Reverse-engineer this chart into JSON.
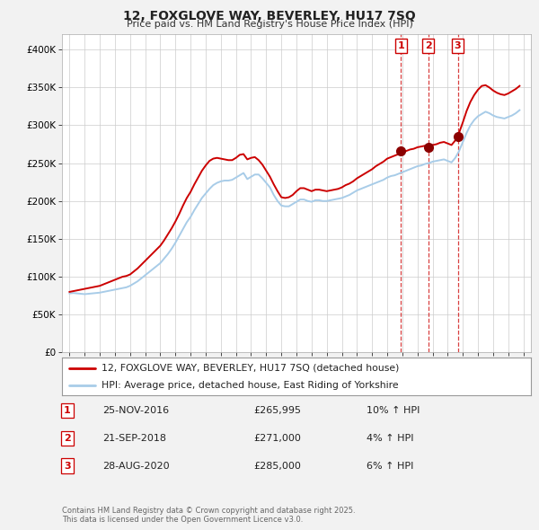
{
  "title": "12, FOXGLOVE WAY, BEVERLEY, HU17 7SQ",
  "subtitle": "Price paid vs. HM Land Registry's House Price Index (HPI)",
  "hpi_color": "#a8cce8",
  "price_color": "#cc0000",
  "background_color": "#f2f2f2",
  "plot_bg_color": "#ffffff",
  "ylim": [
    0,
    420000
  ],
  "yticks": [
    0,
    50000,
    100000,
    150000,
    200000,
    250000,
    300000,
    350000,
    400000
  ],
  "ytick_labels": [
    "£0",
    "£50K",
    "£100K",
    "£150K",
    "£200K",
    "£250K",
    "£300K",
    "£350K",
    "£400K"
  ],
  "legend_label_price": "12, FOXGLOVE WAY, BEVERLEY, HU17 7SQ (detached house)",
  "legend_label_hpi": "HPI: Average price, detached house, East Riding of Yorkshire",
  "transactions": [
    {
      "num": 1,
      "date": "25-NOV-2016",
      "price": 265995,
      "pct": "10%",
      "direction": "↑"
    },
    {
      "num": 2,
      "date": "21-SEP-2018",
      "price": 271000,
      "pct": "4%",
      "direction": "↑"
    },
    {
      "num": 3,
      "date": "28-AUG-2020",
      "price": 285000,
      "pct": "6%",
      "direction": "↑"
    }
  ],
  "footer": "Contains HM Land Registry data © Crown copyright and database right 2025.\nThis data is licensed under the Open Government Licence v3.0.",
  "hpi_data": {
    "years": [
      1995.0,
      1995.25,
      1995.5,
      1995.75,
      1996.0,
      1996.25,
      1996.5,
      1996.75,
      1997.0,
      1997.25,
      1997.5,
      1997.75,
      1998.0,
      1998.25,
      1998.5,
      1998.75,
      1999.0,
      1999.25,
      1999.5,
      1999.75,
      2000.0,
      2000.25,
      2000.5,
      2000.75,
      2001.0,
      2001.25,
      2001.5,
      2001.75,
      2002.0,
      2002.25,
      2002.5,
      2002.75,
      2003.0,
      2003.25,
      2003.5,
      2003.75,
      2004.0,
      2004.25,
      2004.5,
      2004.75,
      2005.0,
      2005.25,
      2005.5,
      2005.75,
      2006.0,
      2006.25,
      2006.5,
      2006.75,
      2007.0,
      2007.25,
      2007.5,
      2007.75,
      2008.0,
      2008.25,
      2008.5,
      2008.75,
      2009.0,
      2009.25,
      2009.5,
      2009.75,
      2010.0,
      2010.25,
      2010.5,
      2010.75,
      2011.0,
      2011.25,
      2011.5,
      2011.75,
      2012.0,
      2012.25,
      2012.5,
      2012.75,
      2013.0,
      2013.25,
      2013.5,
      2013.75,
      2014.0,
      2014.25,
      2014.5,
      2014.75,
      2015.0,
      2015.25,
      2015.5,
      2015.75,
      2016.0,
      2016.25,
      2016.5,
      2016.75,
      2017.0,
      2017.25,
      2017.5,
      2017.75,
      2018.0,
      2018.25,
      2018.5,
      2018.75,
      2019.0,
      2019.25,
      2019.5,
      2019.75,
      2020.0,
      2020.25,
      2020.5,
      2020.75,
      2021.0,
      2021.25,
      2021.5,
      2021.75,
      2022.0,
      2022.25,
      2022.5,
      2022.75,
      2023.0,
      2023.25,
      2023.5,
      2023.75,
      2024.0,
      2024.25,
      2024.5,
      2024.75
    ],
    "values": [
      78000,
      78500,
      78000,
      77500,
      77000,
      77500,
      78000,
      78500,
      79000,
      80000,
      81000,
      82000,
      83000,
      84000,
      85000,
      86000,
      88000,
      91000,
      94000,
      98000,
      102000,
      106000,
      110000,
      114000,
      118000,
      124000,
      130000,
      137000,
      145000,
      154000,
      163000,
      172000,
      179000,
      188000,
      196000,
      204000,
      210000,
      216000,
      221000,
      224000,
      226000,
      227000,
      227000,
      228000,
      231000,
      234000,
      237000,
      229000,
      232000,
      235000,
      235000,
      230000,
      224000,
      218000,
      208000,
      200000,
      194000,
      193000,
      193000,
      196000,
      199000,
      202000,
      202000,
      200000,
      199000,
      201000,
      201000,
      200000,
      200000,
      201000,
      202000,
      203000,
      204000,
      206000,
      208000,
      211000,
      214000,
      216000,
      218000,
      220000,
      222000,
      224000,
      226000,
      228000,
      231000,
      233000,
      234000,
      236000,
      238000,
      240000,
      242000,
      244000,
      246000,
      247000,
      249000,
      250000,
      252000,
      253000,
      254000,
      255000,
      253000,
      251000,
      257000,
      266000,
      278000,
      290000,
      300000,
      307000,
      312000,
      315000,
      318000,
      316000,
      313000,
      311000,
      310000,
      309000,
      311000,
      313000,
      316000,
      320000
    ]
  },
  "price_data": {
    "years": [
      1995.0,
      1995.25,
      1995.5,
      1995.75,
      1996.0,
      1996.25,
      1996.5,
      1996.75,
      1997.0,
      1997.25,
      1997.5,
      1997.75,
      1998.0,
      1998.25,
      1998.5,
      1998.75,
      1999.0,
      1999.25,
      1999.5,
      1999.75,
      2000.0,
      2000.25,
      2000.5,
      2000.75,
      2001.0,
      2001.25,
      2001.5,
      2001.75,
      2002.0,
      2002.25,
      2002.5,
      2002.75,
      2003.0,
      2003.25,
      2003.5,
      2003.75,
      2004.0,
      2004.25,
      2004.5,
      2004.75,
      2005.0,
      2005.25,
      2005.5,
      2005.75,
      2006.0,
      2006.25,
      2006.5,
      2006.75,
      2007.0,
      2007.25,
      2007.5,
      2007.75,
      2008.0,
      2008.25,
      2008.5,
      2008.75,
      2009.0,
      2009.25,
      2009.5,
      2009.75,
      2010.0,
      2010.25,
      2010.5,
      2010.75,
      2011.0,
      2011.25,
      2011.5,
      2011.75,
      2012.0,
      2012.25,
      2012.5,
      2012.75,
      2013.0,
      2013.25,
      2013.5,
      2013.75,
      2014.0,
      2014.25,
      2014.5,
      2014.75,
      2015.0,
      2015.25,
      2015.5,
      2015.75,
      2016.0,
      2016.25,
      2016.5,
      2016.75,
      2017.0,
      2017.25,
      2017.5,
      2017.75,
      2018.0,
      2018.25,
      2018.5,
      2018.75,
      2019.0,
      2019.25,
      2019.5,
      2019.75,
      2020.0,
      2020.25,
      2020.5,
      2020.75,
      2021.0,
      2021.25,
      2021.5,
      2021.75,
      2022.0,
      2022.25,
      2022.5,
      2022.75,
      2023.0,
      2023.25,
      2023.5,
      2023.75,
      2024.0,
      2024.25,
      2024.5,
      2024.75
    ],
    "values": [
      80000,
      81000,
      82000,
      83000,
      84000,
      85000,
      86000,
      87000,
      88000,
      90000,
      92000,
      94000,
      96000,
      98000,
      100000,
      101000,
      103000,
      107000,
      111000,
      116000,
      121000,
      126000,
      131000,
      136000,
      141000,
      148000,
      156000,
      164000,
      173000,
      183000,
      194000,
      204000,
      212000,
      222000,
      231000,
      240000,
      247000,
      253000,
      256000,
      257000,
      256000,
      255000,
      254000,
      254000,
      257000,
      261000,
      262000,
      255000,
      257000,
      258000,
      254000,
      248000,
      240000,
      232000,
      222000,
      213000,
      205000,
      204000,
      205000,
      208000,
      213000,
      217000,
      217000,
      215000,
      213000,
      215000,
      215000,
      214000,
      213000,
      214000,
      215000,
      216000,
      218000,
      221000,
      223000,
      226000,
      230000,
      233000,
      236000,
      239000,
      242000,
      246000,
      249000,
      252000,
      256000,
      258000,
      260000,
      262000,
      264000,
      266000,
      268000,
      269000,
      271000,
      272000,
      273000,
      273000,
      274000,
      275000,
      277000,
      278000,
      276000,
      274000,
      280000,
      290000,
      304000,
      319000,
      331000,
      340000,
      347000,
      352000,
      353000,
      350000,
      346000,
      343000,
      341000,
      340000,
      342000,
      345000,
      348000,
      352000
    ]
  },
  "transaction_years": [
    2016.9,
    2018.72,
    2020.66
  ],
  "transaction_prices": [
    265995,
    271000,
    285000
  ],
  "xlim": [
    1994.5,
    2025.5
  ],
  "xticks": [
    1995,
    1996,
    1997,
    1998,
    1999,
    2000,
    2001,
    2002,
    2003,
    2004,
    2005,
    2006,
    2007,
    2008,
    2009,
    2010,
    2011,
    2012,
    2013,
    2014,
    2015,
    2016,
    2017,
    2018,
    2019,
    2020,
    2021,
    2022,
    2023,
    2024,
    2025
  ]
}
